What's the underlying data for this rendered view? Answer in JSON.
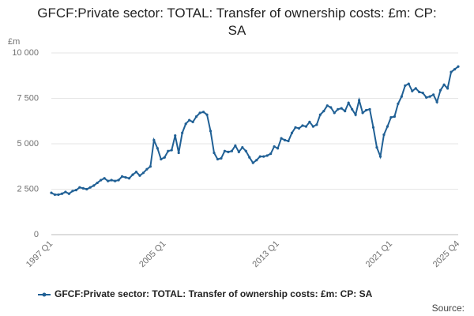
{
  "chart_data": {
    "type": "line",
    "title": "GFCF:Private sector: TOTAL: Transfer of ownership costs: £m: CP: SA",
    "ylabel": "£m",
    "source": "Source:",
    "categories": [
      "1997 Q1",
      null,
      null,
      null,
      null,
      null,
      null,
      null,
      null,
      null,
      null,
      null,
      null,
      null,
      null,
      null,
      null,
      null,
      null,
      null,
      null,
      null,
      null,
      null,
      null,
      null,
      null,
      null,
      null,
      null,
      null,
      null,
      "2005 Q1",
      null,
      null,
      null,
      null,
      null,
      null,
      null,
      null,
      null,
      null,
      null,
      null,
      null,
      null,
      null,
      null,
      null,
      null,
      null,
      null,
      null,
      null,
      null,
      null,
      null,
      null,
      null,
      null,
      null,
      null,
      null,
      "2013 Q1",
      null,
      null,
      null,
      null,
      null,
      null,
      null,
      null,
      null,
      null,
      null,
      null,
      null,
      null,
      null,
      null,
      null,
      null,
      null,
      null,
      null,
      null,
      null,
      null,
      null,
      null,
      null,
      null,
      null,
      null,
      null,
      "2021 Q1",
      null,
      null,
      null,
      null,
      null,
      null,
      null,
      null,
      null,
      null,
      null,
      null,
      null,
      null,
      null,
      null,
      null,
      null,
      "2025 Q4"
    ],
    "series": [
      {
        "name": "GFCF:Private sector: TOTAL: Transfer of ownership costs: £m: CP: SA",
        "color": "#206095",
        "values": [
          2300,
          2200,
          2200,
          2250,
          2350,
          2250,
          2400,
          2450,
          2600,
          2550,
          2500,
          2600,
          2700,
          2850,
          3000,
          3100,
          2950,
          3000,
          2950,
          3000,
          3200,
          3150,
          3100,
          3300,
          3450,
          3250,
          3400,
          3600,
          3750,
          5200,
          4750,
          4150,
          4250,
          4600,
          4650,
          5450,
          4500,
          5600,
          6100,
          6300,
          6200,
          6500,
          6700,
          6750,
          6600,
          5700,
          4500,
          4150,
          4200,
          4600,
          4550,
          4600,
          4900,
          4550,
          4800,
          4600,
          4250,
          3950,
          4100,
          4300,
          4300,
          4350,
          4450,
          4850,
          4750,
          5300,
          5200,
          5150,
          5600,
          5900,
          5850,
          6000,
          5950,
          6200,
          5950,
          6050,
          6600,
          6800,
          7100,
          7000,
          6700,
          6900,
          6950,
          6800,
          7250,
          6900,
          6600,
          7400,
          6700,
          6850,
          6900,
          5900,
          4800,
          4300,
          5500,
          5950,
          6450,
          6500,
          7200,
          7600,
          8200,
          8300,
          7900,
          8050,
          7850,
          7800,
          7550,
          7600,
          7700,
          7300,
          7950,
          8250,
          8050,
          8950,
          9100,
          9250
        ]
      }
    ],
    "ylim": [
      0,
      10000
    ],
    "yticks": [
      {
        "value": 0,
        "label": "0"
      },
      {
        "value": 2500,
        "label": "2 500"
      },
      {
        "value": 5000,
        "label": "5 000"
      },
      {
        "value": 7500,
        "label": "7 500"
      },
      {
        "value": 10000,
        "label": "10 000"
      }
    ],
    "grid": true
  }
}
